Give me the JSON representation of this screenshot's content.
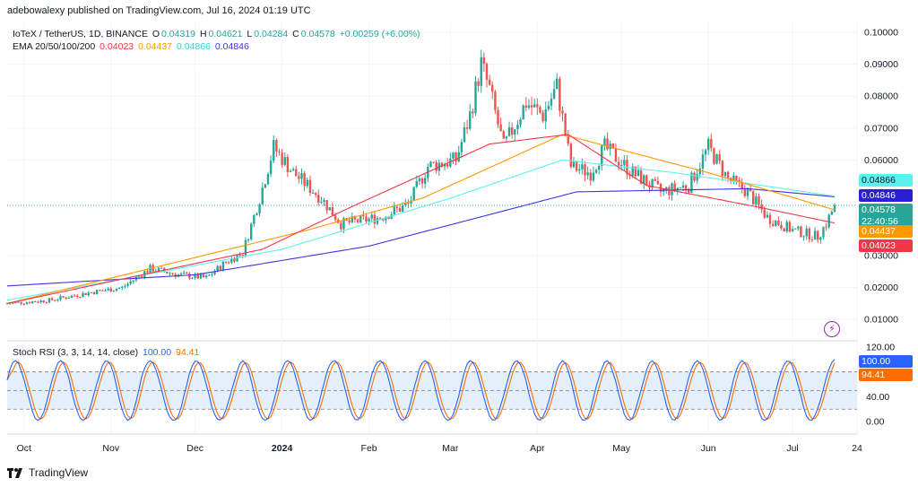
{
  "header": {
    "publisher": "adebowalexy published on TradingView.com, Jul 16, 2024 01:19 UTC"
  },
  "legend": {
    "symbol": "IoTeX / TetherUS, 1D, BINANCE",
    "o_label": "O",
    "o_value": "0.04319",
    "h_label": "H",
    "h_value": "0.04621",
    "l_label": "L",
    "l_value": "0.04284",
    "c_label": "C",
    "c_value": "0.04578",
    "change": "+0.00259 (+6.00%)",
    "ema_title": "EMA 20/50/100/200",
    "ema20": "0.04023",
    "ema50": "0.04437",
    "ema100": "0.04866",
    "ema200": "0.04846"
  },
  "stoch_legend": {
    "title": "Stoch RSI (3, 3, 14, 14, close)",
    "k": "100.00",
    "d": "94.41"
  },
  "price_labels": {
    "ema100": "0.04866",
    "ema200": "0.04846",
    "last": "0.04578",
    "countdown": "22:40:56",
    "ema50": "0.04437",
    "ema20": "0.04023"
  },
  "stoch_labels": {
    "k": "100.00",
    "d": "94.41"
  },
  "colors": {
    "up": "#26a69a",
    "down": "#ef5350",
    "ema20": "#f23645",
    "ema50": "#ff9800",
    "ema100": "#5ef0f0",
    "ema200": "#3d35e8",
    "stoch_k": "#2962ff",
    "stoch_d": "#ff6d00",
    "band": "#e3f0fb"
  },
  "brand": {
    "name": "TradingView",
    "icon": "tradingview-logo-icon"
  },
  "chart_data": {
    "type": "candlestick",
    "symbol": "IoTeX / TetherUS",
    "timeframe": "1D",
    "exchange": "BINANCE",
    "price_axis": {
      "ticks": [
        "0.10000",
        "0.09000",
        "0.08000",
        "0.07000",
        "0.06000",
        "0.03000",
        "0.02000",
        "0.01000"
      ],
      "range": [
        0.0033,
        0.1034
      ]
    },
    "stoch_axis": {
      "ticks": [
        "120.00",
        "40.00",
        "0.00"
      ],
      "range": [
        -20,
        130
      ],
      "band": [
        20,
        80
      ],
      "mid": 50
    },
    "x_axis": {
      "ticks": [
        "Oct",
        "Nov",
        "Dec",
        "2024",
        "Feb",
        "Mar",
        "Apr",
        "May",
        "Jun",
        "Jul",
        "24"
      ],
      "start_date": "2023-09-25",
      "end_date": "2024-07-24"
    },
    "anchors": [
      [
        "2023-09-25",
        0.015
      ],
      [
        "2023-10-10",
        0.016
      ],
      [
        "2023-10-25",
        0.0185
      ],
      [
        "2023-11-05",
        0.02
      ],
      [
        "2023-11-15",
        0.026
      ],
      [
        "2023-11-25",
        0.024
      ],
      [
        "2023-12-05",
        0.023
      ],
      [
        "2023-12-12",
        0.028
      ],
      [
        "2023-12-18",
        0.031
      ],
      [
        "2023-12-24",
        0.048
      ],
      [
        "2023-12-29",
        0.064
      ],
      [
        "2024-01-05",
        0.056
      ],
      [
        "2024-01-15",
        0.048
      ],
      [
        "2024-01-22",
        0.04
      ],
      [
        "2024-02-05",
        0.042
      ],
      [
        "2024-02-15",
        0.046
      ],
      [
        "2024-02-22",
        0.058
      ],
      [
        "2024-03-03",
        0.06
      ],
      [
        "2024-03-08",
        0.074
      ],
      [
        "2024-03-12",
        0.09
      ],
      [
        "2024-03-15",
        0.082
      ],
      [
        "2024-03-20",
        0.064
      ],
      [
        "2024-03-28",
        0.078
      ],
      [
        "2024-04-03",
        0.074
      ],
      [
        "2024-04-08",
        0.083
      ],
      [
        "2024-04-13",
        0.058
      ],
      [
        "2024-04-20",
        0.056
      ],
      [
        "2024-04-25",
        0.064
      ],
      [
        "2024-05-05",
        0.056
      ],
      [
        "2024-05-15",
        0.05
      ],
      [
        "2024-05-25",
        0.052
      ],
      [
        "2024-06-01",
        0.064
      ],
      [
        "2024-06-08",
        0.054
      ],
      [
        "2024-06-15",
        0.05
      ],
      [
        "2024-06-22",
        0.042
      ],
      [
        "2024-07-01",
        0.038
      ],
      [
        "2024-07-10",
        0.036
      ],
      [
        "2024-07-13",
        0.04
      ],
      [
        "2024-07-16",
        0.0458
      ]
    ],
    "ema_anchors": {
      "ema20": [
        [
          "2023-09-25",
          0.015
        ],
        [
          "2023-12-25",
          0.032
        ],
        [
          "2024-01-25",
          0.045
        ],
        [
          "2024-03-15",
          0.065
        ],
        [
          "2024-04-12",
          0.068
        ],
        [
          "2024-05-10",
          0.052
        ],
        [
          "2024-06-20",
          0.045
        ],
        [
          "2024-07-16",
          0.04023
        ]
      ],
      "ema50": [
        [
          "2023-09-25",
          0.015
        ],
        [
          "2024-01-10",
          0.038
        ],
        [
          "2024-02-20",
          0.048
        ],
        [
          "2024-04-10",
          0.068
        ],
        [
          "2024-06-01",
          0.056
        ],
        [
          "2024-07-16",
          0.04437
        ]
      ],
      "ema100": [
        [
          "2023-09-25",
          0.016
        ],
        [
          "2024-01-01",
          0.032
        ],
        [
          "2024-03-01",
          0.048
        ],
        [
          "2024-04-10",
          0.06
        ],
        [
          "2024-05-20",
          0.056
        ],
        [
          "2024-07-16",
          0.04866
        ]
      ],
      "ema200": [
        [
          "2023-09-25",
          0.0205
        ],
        [
          "2023-12-01",
          0.024
        ],
        [
          "2024-02-01",
          0.033
        ],
        [
          "2024-04-15",
          0.05
        ],
        [
          "2024-06-15",
          0.051
        ],
        [
          "2024-07-16",
          0.04846
        ]
      ]
    }
  }
}
